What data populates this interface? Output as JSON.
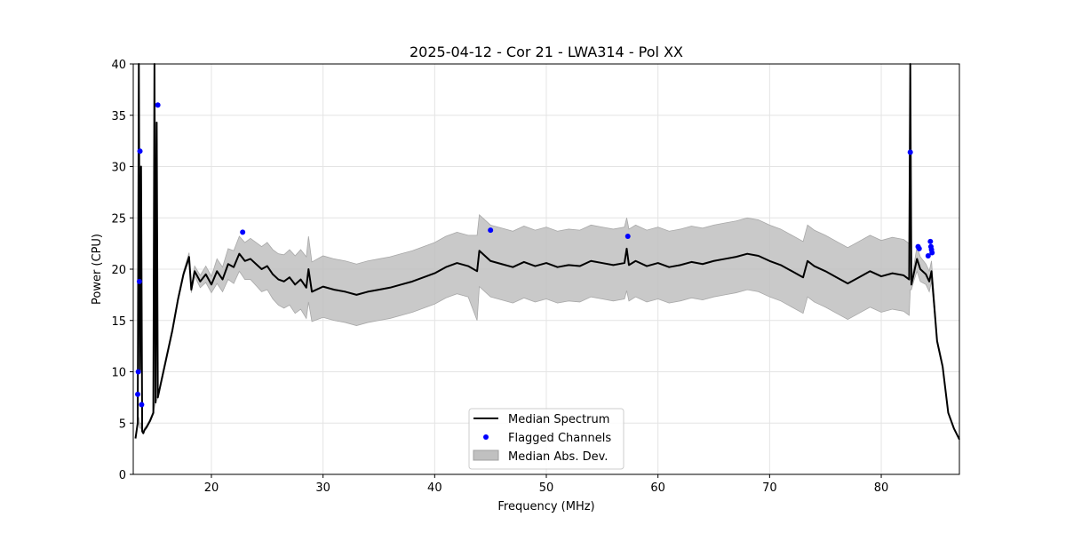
{
  "chart_data": {
    "type": "line",
    "title": "2025-04-12 - Cor 21 - LWA314 - Pol XX",
    "xlabel": "Frequency (MHz)",
    "ylabel": "Power (CPU)",
    "xlim": [
      13,
      87
    ],
    "ylim": [
      0,
      40
    ],
    "xticks": [
      20,
      30,
      40,
      50,
      60,
      70,
      80
    ],
    "yticks": [
      0,
      5,
      10,
      15,
      20,
      25,
      30,
      35,
      40
    ],
    "grid": true,
    "legend_position": "bottom-center",
    "legend": [
      "Median Spectrum",
      "Flagged Channels",
      "Median Abs. Dev."
    ],
    "series": [
      {
        "name": "Median Spectrum",
        "type": "line",
        "color": "#000000",
        "x": [
          13.2,
          13.4,
          13.5,
          13.6,
          13.7,
          13.8,
          13.9,
          14.0,
          14.2,
          14.5,
          14.8,
          14.9,
          15.0,
          15.1,
          15.2,
          15.3,
          15.4,
          15.6,
          16.0,
          16.5,
          17.0,
          17.5,
          18.0,
          18.2,
          18.5,
          19.0,
          19.5,
          20.0,
          20.5,
          21.0,
          21.5,
          22.0,
          22.5,
          23.0,
          23.5,
          24.0,
          24.5,
          25.0,
          25.5,
          26.0,
          26.5,
          27.0,
          27.5,
          28.0,
          28.5,
          28.7,
          29.0,
          30.0,
          31.0,
          32.0,
          33.0,
          34.0,
          35.0,
          36.0,
          37.0,
          38.0,
          39.0,
          40.0,
          41.0,
          42.0,
          43.0,
          43.8,
          44.0,
          45.0,
          46.0,
          47.0,
          48.0,
          49.0,
          50.0,
          51.0,
          52.0,
          53.0,
          54.0,
          55.0,
          56.0,
          57.0,
          57.2,
          57.4,
          58.0,
          59.0,
          60.0,
          61.0,
          62.0,
          63.0,
          64.0,
          65.0,
          66.0,
          67.0,
          68.0,
          69.0,
          70.0,
          71.0,
          72.0,
          73.0,
          73.4,
          74.0,
          75.0,
          76.0,
          77.0,
          78.0,
          79.0,
          80.0,
          81.0,
          82.0,
          82.5,
          82.6,
          82.7,
          82.9,
          83.2,
          83.5,
          84.0,
          84.3,
          84.5,
          85.0,
          85.5,
          86.0,
          86.5,
          87.0
        ],
        "values": [
          3.5,
          5.0,
          40,
          10.0,
          30.0,
          4.2,
          4.0,
          4.3,
          4.6,
          5.2,
          6.0,
          40,
          7.0,
          34.3,
          7.5,
          8.0,
          8.5,
          9.5,
          11.5,
          14.0,
          17.0,
          19.5,
          21.2,
          18.0,
          19.8,
          18.8,
          19.5,
          18.5,
          19.8,
          19.0,
          20.5,
          20.2,
          21.5,
          20.8,
          21.0,
          20.5,
          20.0,
          20.3,
          19.5,
          19.0,
          18.8,
          19.2,
          18.5,
          19.0,
          18.2,
          20.0,
          17.8,
          18.3,
          18.0,
          17.8,
          17.5,
          17.8,
          18.0,
          18.2,
          18.5,
          18.8,
          19.2,
          19.6,
          20.2,
          20.6,
          20.3,
          19.8,
          21.8,
          20.8,
          20.5,
          20.2,
          20.7,
          20.3,
          20.6,
          20.2,
          20.4,
          20.3,
          20.8,
          20.6,
          20.4,
          20.6,
          22.0,
          20.4,
          20.8,
          20.3,
          20.6,
          20.2,
          20.4,
          20.7,
          20.5,
          20.8,
          21.0,
          21.2,
          21.5,
          21.3,
          20.8,
          20.4,
          19.8,
          19.2,
          20.8,
          20.3,
          19.8,
          19.2,
          18.6,
          19.2,
          19.8,
          19.3,
          19.6,
          19.4,
          19.0,
          40,
          18.5,
          19.5,
          21.0,
          20.0,
          19.5,
          18.8,
          19.8,
          13.0,
          10.5,
          6.0,
          4.5,
          3.4
        ],
        "ci_lower": [
          3.5,
          4.8,
          5.0,
          4.5,
          4.5,
          4.2,
          4.0,
          4.3,
          4.6,
          5.2,
          6.0,
          6.5,
          7.0,
          7.2,
          7.5,
          8.0,
          8.5,
          9.5,
          11.5,
          14.0,
          17.0,
          19.5,
          20.8,
          17.7,
          19.3,
          18.2,
          18.7,
          17.7,
          18.6,
          17.8,
          19.0,
          18.6,
          19.8,
          19.0,
          19.0,
          18.4,
          17.8,
          18.0,
          17.1,
          16.5,
          16.2,
          16.5,
          15.7,
          16.1,
          15.2,
          16.8,
          14.9,
          15.3,
          15.0,
          14.8,
          14.5,
          14.8,
          15.0,
          15.2,
          15.5,
          15.8,
          16.2,
          16.6,
          17.2,
          17.6,
          17.3,
          15.0,
          18.3,
          17.3,
          17.0,
          16.7,
          17.2,
          16.8,
          17.1,
          16.7,
          16.9,
          16.8,
          17.3,
          17.1,
          16.9,
          17.1,
          17.9,
          16.9,
          17.3,
          16.8,
          17.1,
          16.7,
          16.9,
          17.2,
          17.0,
          17.3,
          17.5,
          17.7,
          18.0,
          17.8,
          17.3,
          16.9,
          16.3,
          15.7,
          17.3,
          16.8,
          16.3,
          15.7,
          15.1,
          15.7,
          16.3,
          15.8,
          16.1,
          15.9,
          15.5,
          18.0,
          18.0,
          18.8,
          19.8,
          18.8,
          18.5,
          17.8,
          18.8,
          12.8,
          10.3,
          5.9,
          4.4,
          3.4
        ],
        "ci_upper": [
          3.5,
          5.2,
          5.5,
          5.0,
          5.0,
          4.4,
          4.2,
          4.5,
          4.8,
          5.4,
          6.2,
          6.8,
          7.3,
          7.5,
          7.8,
          8.3,
          8.8,
          9.8,
          11.8,
          14.3,
          17.3,
          19.8,
          21.6,
          18.3,
          20.3,
          19.4,
          20.3,
          19.3,
          21.0,
          20.2,
          22.0,
          21.8,
          23.2,
          22.6,
          23.0,
          22.6,
          22.2,
          22.6,
          21.9,
          21.5,
          21.4,
          21.9,
          21.3,
          21.9,
          21.2,
          23.2,
          20.7,
          21.3,
          21.0,
          20.8,
          20.5,
          20.8,
          21.0,
          21.2,
          21.5,
          21.8,
          22.2,
          22.6,
          23.2,
          23.6,
          23.3,
          23.3,
          25.3,
          24.3,
          24.0,
          23.7,
          24.2,
          23.8,
          24.1,
          23.7,
          23.9,
          23.8,
          24.3,
          24.1,
          23.9,
          24.1,
          25.0,
          23.9,
          24.3,
          23.8,
          24.1,
          23.7,
          23.9,
          24.2,
          24.0,
          24.3,
          24.5,
          24.7,
          25.0,
          24.8,
          24.3,
          23.9,
          23.3,
          22.7,
          24.3,
          23.8,
          23.3,
          22.7,
          22.1,
          22.7,
          23.3,
          22.8,
          23.1,
          22.9,
          22.5,
          21.0,
          19.0,
          20.2,
          22.2,
          21.2,
          20.5,
          19.8,
          20.8,
          13.2,
          10.7,
          6.1,
          4.6,
          3.4
        ]
      },
      {
        "name": "Flagged Channels",
        "type": "scatter",
        "color": "#0000ff",
        "x": [
          13.4,
          13.45,
          13.55,
          13.6,
          13.75,
          15.2,
          22.8,
          45.0,
          57.3,
          82.6,
          83.3,
          83.4,
          84.2,
          84.4,
          84.45,
          84.5,
          84.55
        ],
        "values": [
          7.8,
          10.0,
          18.8,
          31.5,
          6.8,
          36.0,
          23.6,
          23.8,
          23.2,
          31.4,
          22.2,
          22.0,
          21.3,
          22.7,
          22.2,
          21.9,
          21.6
        ]
      }
    ],
    "legend_colors": {
      "line": "#000000",
      "points": "#0000ff",
      "band": "#c0c0c0"
    }
  }
}
